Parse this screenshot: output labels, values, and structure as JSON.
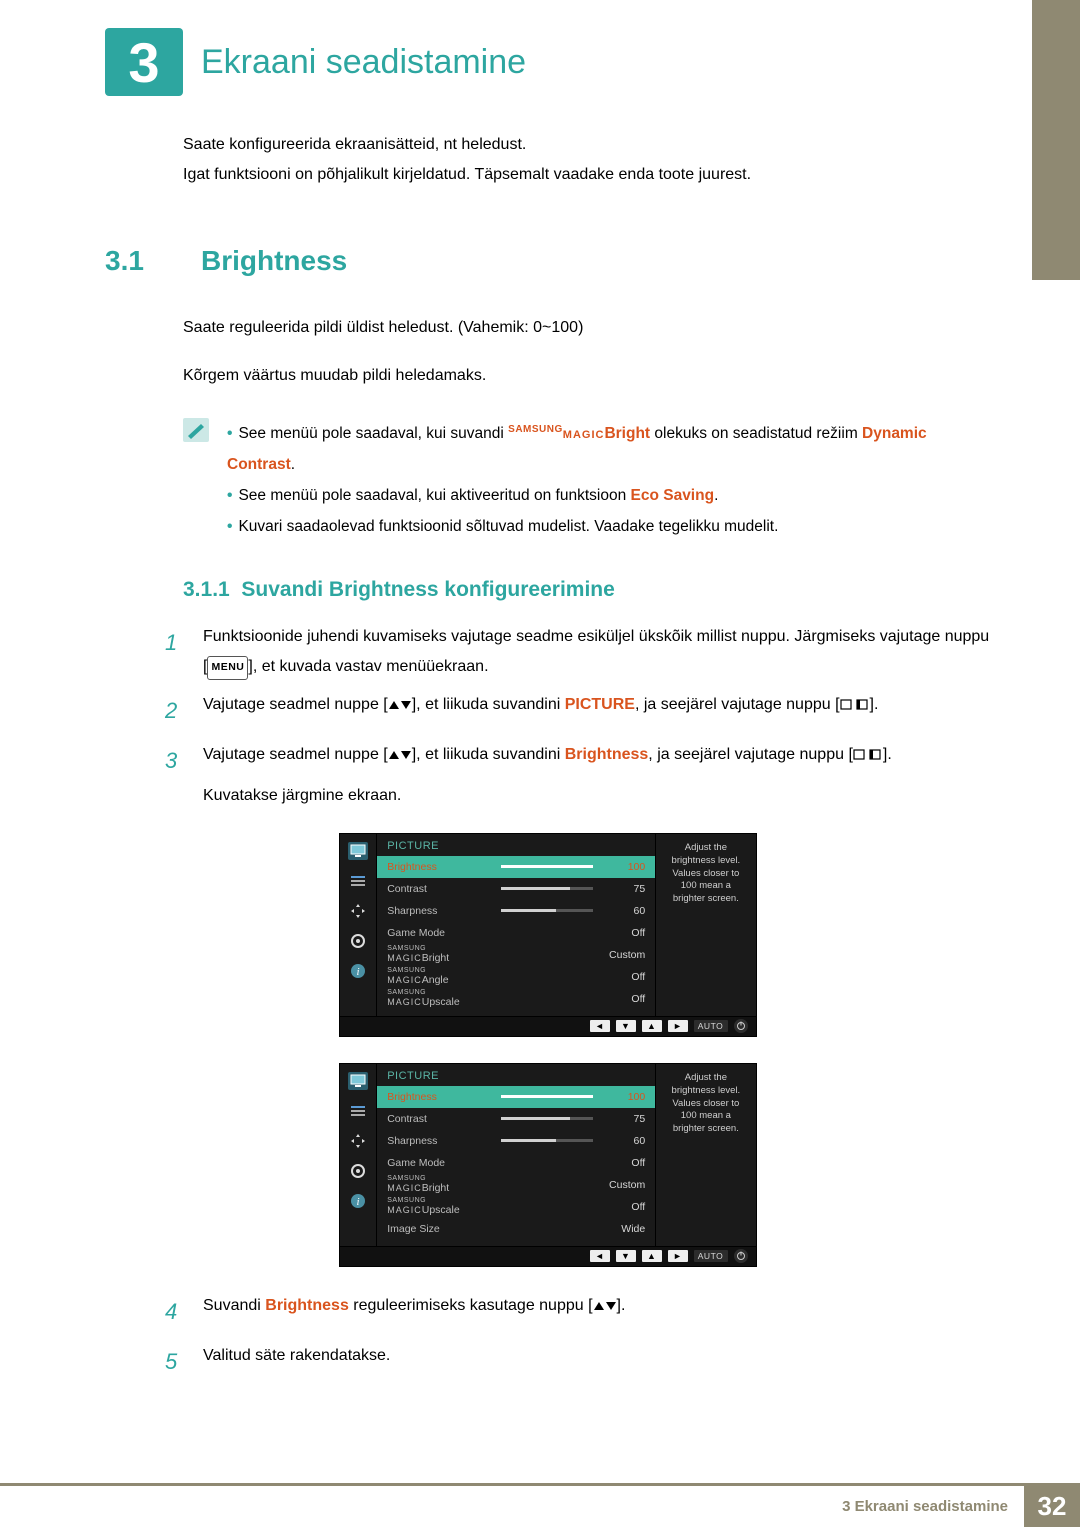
{
  "chapter": {
    "number": "3",
    "title": "Ekraani seadistamine"
  },
  "intro": {
    "l1": "Saate konfigureerida ekraanisätteid, nt heledust.",
    "l2": "Igat funktsiooni on põhjalikult kirjeldatud. Täpsemalt vaadake enda toote juurest."
  },
  "section": {
    "num": "3.1",
    "title": "Brightness",
    "p1": "Saate reguleerida pildi üldist heledust. (Vahemik: 0~100)",
    "p2": "Kõrgem väärtus muudab pildi heledamaks."
  },
  "notes": {
    "n1a": "See menüü pole saadaval, kui suvandi ",
    "n1_samsung": "SAMSUNG",
    "n1_magic": "MAGIC",
    "n1_bright": "Bright",
    "n1b": " olekuks on seadistatud režiim ",
    "n1_dc": "Dynamic Contrast",
    "n1c": ".",
    "n2a": "See menüü pole saadaval, kui aktiveeritud on funktsioon ",
    "n2_eco": "Eco Saving",
    "n2b": ".",
    "n3": "Kuvari saadaolevad funktsioonid sõltuvad mudelist. Vaadake tegelikku mudelit."
  },
  "subsection": {
    "num": "3.1.1",
    "title": "Suvandi Brightness konfigureerimine"
  },
  "steps": {
    "s1": "Funktsioonide juhendi kuvamiseks vajutage seadme esiküljel ükskõik millist nuppu. Järgmiseks vajutage nuppu [",
    "s1_menu": "MENU",
    "s1b": "], et kuvada vastav menüüekraan.",
    "s2a": "Vajutage seadmel nuppe [",
    "s2b": "], et liikuda suvandini ",
    "s2_pic": "PICTURE",
    "s2c": ", ja seejärel vajutage nuppu [",
    "s2d": "].",
    "s3a": "Vajutage seadmel nuppe [",
    "s3b": "], et liikuda suvandini ",
    "s3_bright": "Brightness",
    "s3c": ", ja seejärel vajutage nuppu [",
    "s3d": "].",
    "s3e": "Kuvatakse järgmine ekraan.",
    "s4a": "Suvandi ",
    "s4_bright": "Brightness",
    "s4b": " reguleerimiseks kasutage nuppu [",
    "s4c": "].",
    "s5": "Valitud säte rakendatakse."
  },
  "osd": {
    "title": "PICTURE",
    "hint": "Adjust the brightness level. Values closer to 100 mean a brighter screen.",
    "auto": "AUTO",
    "samsung": "SAMSUNG",
    "magic": "MAGIC",
    "menu1": [
      {
        "label": "Brightness",
        "value": "100",
        "fill": 100,
        "highlight": true,
        "slider": true
      },
      {
        "label": "Contrast",
        "value": "75",
        "fill": 75,
        "slider": true
      },
      {
        "label": "Sharpness",
        "value": "60",
        "fill": 60,
        "slider": true
      },
      {
        "label": "Game Mode",
        "value": "Off"
      },
      {
        "label_sm": true,
        "label": "Bright",
        "value": "Custom"
      },
      {
        "label_sm": true,
        "label": "Angle",
        "value": "Off"
      },
      {
        "label_sm": true,
        "label": "Upscale",
        "value": "Off"
      }
    ],
    "menu2": [
      {
        "label": "Brightness",
        "value": "100",
        "fill": 100,
        "highlight": true,
        "slider": true
      },
      {
        "label": "Contrast",
        "value": "75",
        "fill": 75,
        "slider": true
      },
      {
        "label": "Sharpness",
        "value": "60",
        "fill": 60,
        "slider": true
      },
      {
        "label": "Game Mode",
        "value": "Off"
      },
      {
        "label_sm": true,
        "label": "Bright",
        "value": "Custom"
      },
      {
        "label_sm": true,
        "label": "Upscale",
        "value": "Off"
      },
      {
        "label": "Image Size",
        "value": "Wide"
      }
    ]
  },
  "footer": {
    "label": "3 Ekraani seadistamine",
    "page": "32"
  }
}
